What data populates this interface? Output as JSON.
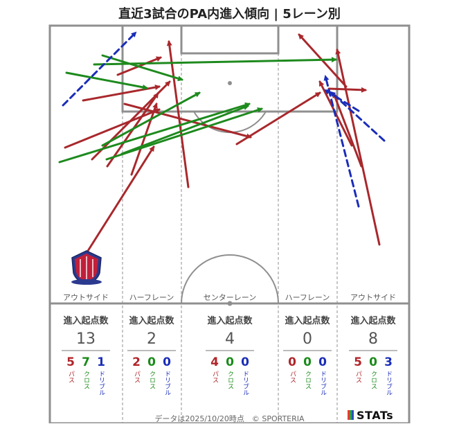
{
  "title": "直近3試合のPA内進入傾向 | 5レーン別",
  "lanes": [
    {
      "name": "アウトサイド",
      "header": "進入起点数",
      "total": "13",
      "pass": "5",
      "cross": "7",
      "dribble": "1"
    },
    {
      "name": "ハーフレーン",
      "header": "進入起点数",
      "total": "2",
      "pass": "2",
      "cross": "0",
      "dribble": "0"
    },
    {
      "name": "センターレーン",
      "header": "進入起点数",
      "total": "4",
      "pass": "4",
      "cross": "0",
      "dribble": "0"
    },
    {
      "name": "ハーフレーン",
      "header": "進入起点数",
      "total": "0",
      "pass": "0",
      "cross": "0",
      "dribble": "0"
    },
    {
      "name": "アウトサイド",
      "header": "進入起点数",
      "total": "8",
      "pass": "5",
      "cross": "0",
      "dribble": "3"
    }
  ],
  "type_labels": {
    "pass": "パス",
    "cross": "クロス",
    "dribble": "ドリブル"
  },
  "colors": {
    "pass": "#a8282c",
    "cross": "#1d8a1d",
    "dribble": "#1a2db8",
    "pitch_line": "#8f8f8f"
  },
  "footer": "データは2025/10/20時点　© SPORTERIA",
  "brand": "STATs",
  "emblem_icon": "club-crest-icon",
  "chart_data": {
    "type": "arrow-map",
    "arrows": [
      {
        "type": "pass",
        "from": [
          127,
          362
        ],
        "to": [
          222,
          212
        ]
      },
      {
        "type": "pass",
        "from": [
          94,
          213
        ],
        "to": [
          230,
          158
        ]
      },
      {
        "type": "pass",
        "from": [
          133,
          230
        ],
        "to": [
          245,
          118
        ]
      },
      {
        "type": "pass",
        "from": [
          155,
          240
        ],
        "to": [
          228,
          135
        ]
      },
      {
        "type": "pass",
        "from": [
          190,
          252
        ],
        "to": [
          226,
          150
        ]
      },
      {
        "type": "pass",
        "from": [
          120,
          145
        ],
        "to": [
          230,
          125
        ]
      },
      {
        "type": "pass",
        "from": [
          170,
          108
        ],
        "to": [
          232,
          83
        ]
      },
      {
        "type": "pass",
        "from": [
          272,
          270
        ],
        "to": [
          244,
          60
        ]
      },
      {
        "type": "pass",
        "from": [
          180,
          150
        ],
        "to": [
          362,
          198
        ]
      },
      {
        "type": "pass",
        "from": [
          342,
          208
        ],
        "to": [
          462,
          134
        ]
      },
      {
        "type": "pass",
        "from": [
          548,
          353
        ],
        "to": [
          487,
          72
        ]
      },
      {
        "type": "pass",
        "from": [
          522,
          240
        ],
        "to": [
          482,
          135
        ]
      },
      {
        "type": "pass",
        "from": [
          508,
          210
        ],
        "to": [
          462,
          118
        ]
      },
      {
        "type": "pass",
        "from": [
          475,
          128
        ],
        "to": [
          528,
          130
        ]
      },
      {
        "type": "pass",
        "from": [
          500,
          125
        ],
        "to": [
          432,
          50
        ]
      },
      {
        "type": "cross",
        "from": [
          136,
          93
        ],
        "to": [
          485,
          86
        ]
      },
      {
        "type": "cross",
        "from": [
          96,
          105
        ],
        "to": [
          212,
          127
        ]
      },
      {
        "type": "cross",
        "from": [
          148,
          80
        ],
        "to": [
          263,
          115
        ]
      },
      {
        "type": "cross",
        "from": [
          86,
          234
        ],
        "to": [
          360,
          150
        ]
      },
      {
        "type": "cross",
        "from": [
          148,
          210
        ],
        "to": [
          288,
          134
        ]
      },
      {
        "type": "cross",
        "from": [
          154,
          230
        ],
        "to": [
          378,
          157
        ]
      },
      {
        "type": "cross",
        "from": [
          176,
          222
        ],
        "to": [
          358,
          153
        ]
      },
      {
        "type": "dribble",
        "from": [
          91,
          152
        ],
        "to": [
          196,
          47
        ]
      },
      {
        "type": "dribble",
        "from": [
          518,
          298
        ],
        "to": [
          470,
          110
        ]
      },
      {
        "type": "dribble",
        "from": [
          555,
          203
        ],
        "to": [
          478,
          133
        ]
      },
      {
        "type": "dribble",
        "from": [
          518,
          160
        ],
        "to": [
          470,
          130
        ]
      }
    ]
  }
}
